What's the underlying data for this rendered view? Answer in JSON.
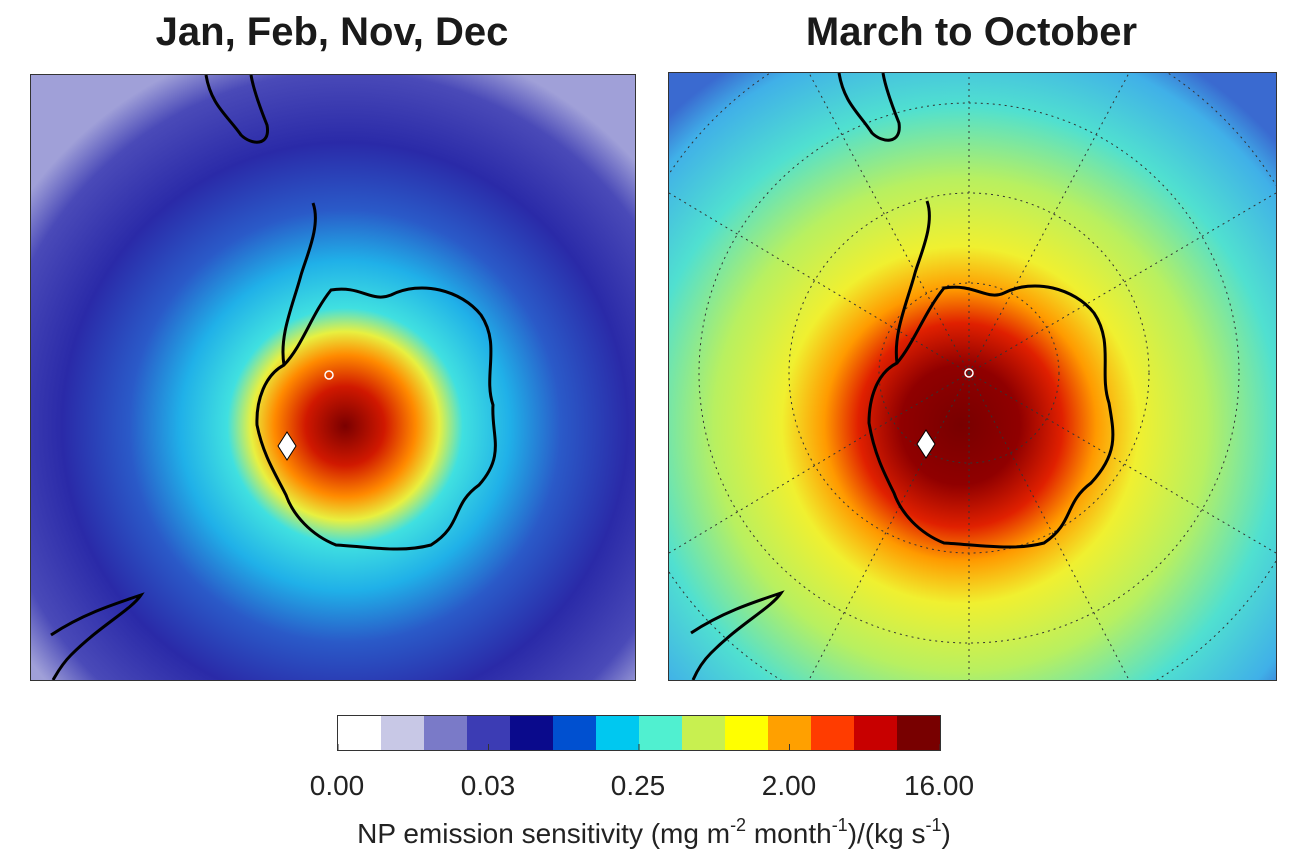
{
  "panels": [
    {
      "title": "Jan, Feb, Nov, Dec",
      "sensitivity_level": "low"
    },
    {
      "title": "March to October",
      "sensitivity_level": "high"
    }
  ],
  "colorbar": {
    "ticks": [
      "0.00",
      "0.03",
      "0.25",
      "2.00",
      "16.00"
    ],
    "label_parts": {
      "prefix": "NP emission sensitivity (mg m",
      "exp1": "-2",
      "mid": " month",
      "exp2": "-1",
      "mid2": ")/(kg s",
      "exp3": "-1",
      "suffix": ")"
    },
    "colormap": [
      "#ffffff",
      "#c8c8e6",
      "#7a7ac8",
      "#3c3cb4",
      "#0a0a8c",
      "#0050d0",
      "#00c8f0",
      "#50f0d0",
      "#c8f050",
      "#ffff00",
      "#ffa000",
      "#ff3c00",
      "#c80000",
      "#780000"
    ]
  },
  "markers": {
    "station_shape": "white-diamond",
    "pole_marker": "small-circle"
  }
}
